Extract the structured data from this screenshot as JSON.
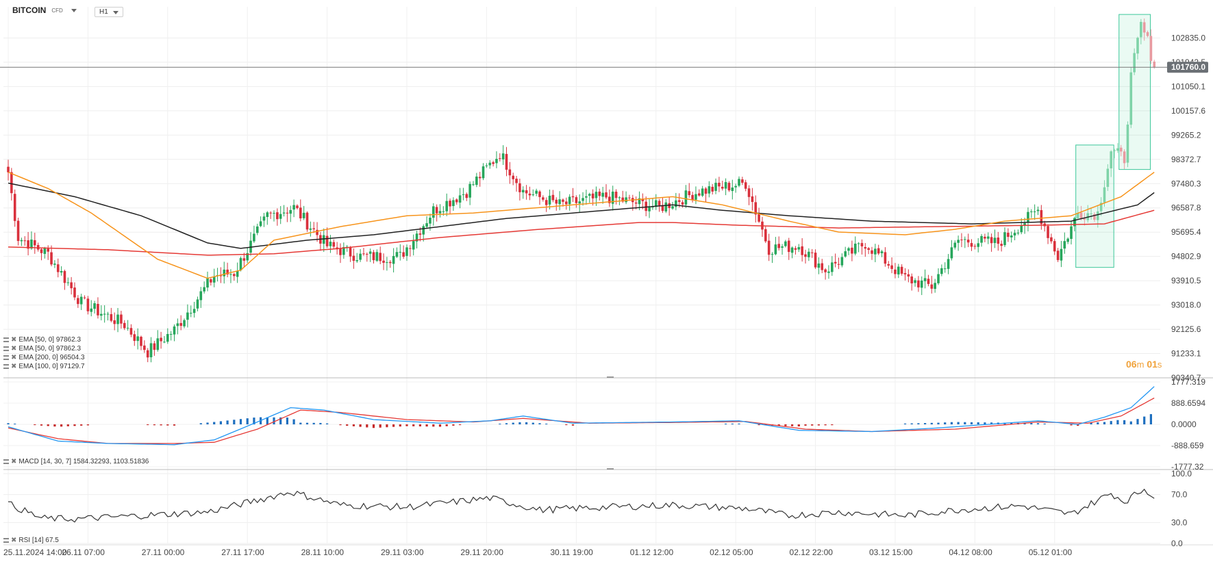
{
  "header": {
    "symbol": "BITCOIN",
    "instrument_type": "CFD",
    "timeframe": "H1"
  },
  "countdown": {
    "minutes": "06",
    "minutes_unit": "m",
    "seconds": "01",
    "seconds_unit": "s"
  },
  "price_panel": {
    "yticks": [
      "102835.0",
      "101942.5",
      "101050.1",
      "100157.6",
      "99265.2",
      "98372.7",
      "97480.3",
      "96587.8",
      "95695.4",
      "94802.9",
      "93910.5",
      "93018.0",
      "92125.6",
      "91233.1",
      "90340.7"
    ],
    "current_price_label": "101760.0",
    "current_price": 101760,
    "ylim": [
      90340.7,
      103727.5
    ],
    "indicators": [
      {
        "label": "EMA [50, 0] 97862.3",
        "color": "#f7931a"
      },
      {
        "label": "EMA [50, 0] 97862.3",
        "color": "#f7931a"
      },
      {
        "label": "EMA [200, 0] 96504.3",
        "color": "#e53935"
      },
      {
        "label": "EMA [100, 0] 97129.7",
        "color": "#212121"
      }
    ]
  },
  "macd_panel": {
    "label": "MACD [14, 30, 7] 1584.32293,   1103.51836",
    "yticks": [
      "1777.319",
      "888.6594",
      "0.0000",
      "-888.659",
      "-1777.32"
    ],
    "ylim": [
      -1777.32,
      1777.319
    ],
    "colors": {
      "macd": "#2196f3",
      "signal": "#e53935",
      "hist_pos": "#1e6fbf",
      "hist_neg": "#c62828"
    }
  },
  "rsi_panel": {
    "label": "RSI [14] 67.5",
    "yticks": [
      "100.0",
      "70.0",
      "30.0",
      "0.0"
    ],
    "ylim": [
      0,
      100
    ]
  },
  "xaxis": {
    "labels": [
      "25.11.2024  14:00",
      "26.11  07:00",
      "27.11  00:00",
      "27.11  17:00",
      "28.11  10:00",
      "29.11  03:00",
      "29.11  20:00",
      "30.11  19:00",
      "01.12  12:00",
      "02.12  05:00",
      "02.12  22:00",
      "03.12  15:00",
      "04.12  08:00",
      "05.12  01:00"
    ]
  },
  "chart_data": {
    "type": "candlestick",
    "title": "",
    "ylim": [
      90340.7,
      103727.5
    ],
    "ema_anchor_points": {
      "ema50_orange": [
        [
          0,
          97900
        ],
        [
          12,
          97300
        ],
        [
          25,
          96400
        ],
        [
          45,
          94700
        ],
        [
          60,
          94000
        ],
        [
          70,
          94300
        ],
        [
          80,
          95400
        ],
        [
          100,
          95900
        ],
        [
          120,
          96300
        ],
        [
          140,
          96400
        ],
        [
          160,
          96600
        ],
        [
          180,
          96800
        ],
        [
          200,
          97000
        ],
        [
          215,
          96700
        ],
        [
          235,
          96100
        ],
        [
          250,
          95700
        ],
        [
          270,
          95600
        ],
        [
          285,
          95800
        ],
        [
          300,
          96100
        ],
        [
          320,
          96300
        ],
        [
          335,
          97000
        ],
        [
          345,
          97900
        ]
      ],
      "ema100_black": [
        [
          0,
          97500
        ],
        [
          20,
          97000
        ],
        [
          40,
          96300
        ],
        [
          60,
          95300
        ],
        [
          70,
          95100
        ],
        [
          90,
          95400
        ],
        [
          110,
          95600
        ],
        [
          130,
          95900
        ],
        [
          150,
          96200
        ],
        [
          170,
          96400
        ],
        [
          200,
          96700
        ],
        [
          215,
          96500
        ],
        [
          235,
          96300
        ],
        [
          260,
          96100
        ],
        [
          290,
          96000
        ],
        [
          320,
          96100
        ],
        [
          340,
          96700
        ],
        [
          345,
          97150
        ]
      ],
      "ema200_red": [
        [
          0,
          95150
        ],
        [
          30,
          95050
        ],
        [
          60,
          94850
        ],
        [
          80,
          94900
        ],
        [
          100,
          95100
        ],
        [
          130,
          95500
        ],
        [
          160,
          95800
        ],
        [
          190,
          96050
        ],
        [
          200,
          96050
        ],
        [
          220,
          95950
        ],
        [
          250,
          95850
        ],
        [
          280,
          95900
        ],
        [
          310,
          95950
        ],
        [
          330,
          96000
        ],
        [
          345,
          96500
        ]
      ]
    }
  }
}
